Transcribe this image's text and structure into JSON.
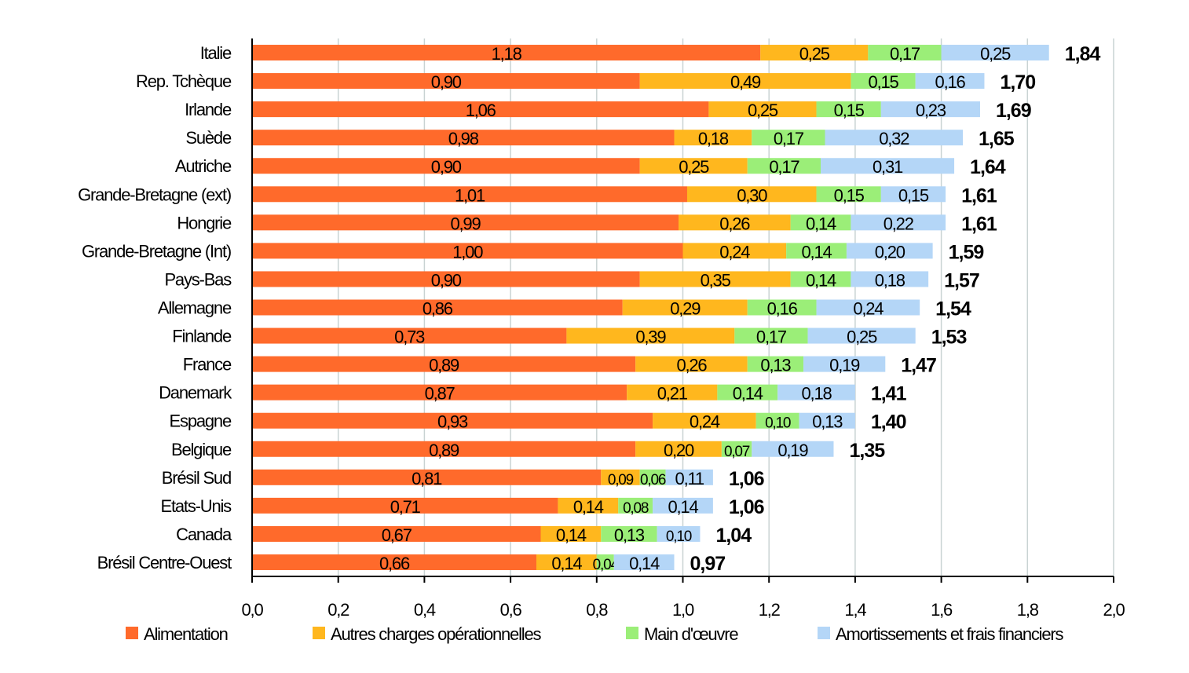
{
  "chart_data": {
    "type": "bar",
    "orientation": "horizontal",
    "stacked": true,
    "categories": [
      "Italie",
      "Rep. Tchèque",
      "Irlande",
      "Suède",
      "Autriche",
      "Grande-Bretagne (ext)",
      "Hongrie",
      "Grande-Bretagne (Int)",
      "Pays-Bas",
      "Allemagne",
      "Finlande",
      "France",
      "Danemark",
      "Espagne",
      "Belgique",
      "Brésil Sud",
      "Etats-Unis",
      "Canada",
      "Brésil Centre-Ouest"
    ],
    "series": [
      {
        "name": "Alimentation",
        "color": "#FF6A2B",
        "values": [
          1.18,
          0.9,
          1.06,
          0.98,
          0.9,
          1.01,
          0.99,
          1.0,
          0.9,
          0.86,
          0.73,
          0.89,
          0.87,
          0.93,
          0.89,
          0.81,
          0.71,
          0.67,
          0.66
        ]
      },
      {
        "name": "Autres charges opérationnelles",
        "color": "#FFB71E",
        "values": [
          0.25,
          0.49,
          0.25,
          0.18,
          0.25,
          0.3,
          0.26,
          0.24,
          0.35,
          0.29,
          0.39,
          0.26,
          0.21,
          0.24,
          0.2,
          0.09,
          0.14,
          0.14,
          0.14
        ]
      },
      {
        "name": "Main d'œuvre",
        "color": "#9BEE78",
        "values": [
          0.17,
          0.15,
          0.15,
          0.17,
          0.17,
          0.15,
          0.14,
          0.14,
          0.14,
          0.16,
          0.17,
          0.13,
          0.14,
          0.1,
          0.07,
          0.06,
          0.08,
          0.13,
          0.04
        ]
      },
      {
        "name": "Amortissements et frais financiers",
        "color": "#B4D6F7",
        "values": [
          0.25,
          0.16,
          0.23,
          0.32,
          0.31,
          0.15,
          0.22,
          0.2,
          0.18,
          0.24,
          0.25,
          0.19,
          0.18,
          0.13,
          0.19,
          0.11,
          0.14,
          0.1,
          0.14
        ]
      }
    ],
    "totals": [
      1.84,
      1.7,
      1.69,
      1.65,
      1.64,
      1.61,
      1.61,
      1.59,
      1.57,
      1.54,
      1.53,
      1.47,
      1.41,
      1.4,
      1.35,
      1.06,
      1.06,
      1.04,
      0.97
    ],
    "xlim": [
      0,
      2.0
    ],
    "xticks": [
      0,
      0.2,
      0.4,
      0.6,
      0.8,
      1.0,
      1.2,
      1.4,
      1.6,
      1.8,
      2.0
    ],
    "xtick_labels": [
      "0,0",
      "0,2",
      "0,4",
      "0,6",
      "0,8",
      "1,0",
      "1,2",
      "1,4",
      "1,6",
      "1,8",
      "2,0"
    ],
    "decimal_separator": ",",
    "grid": "vertical",
    "legend": "bottom",
    "title": "",
    "xlabel": "",
    "ylabel": ""
  }
}
